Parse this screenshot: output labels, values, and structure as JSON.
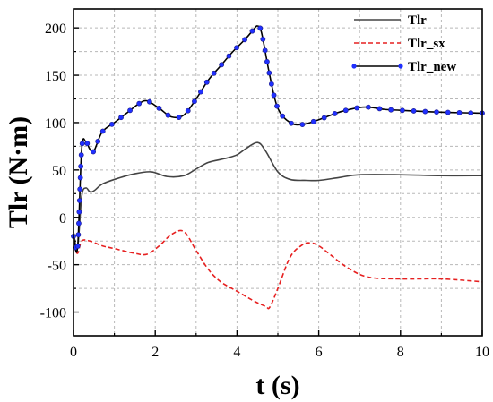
{
  "chart_data": {
    "type": "line",
    "title": "",
    "xlabel": "t (s)",
    "ylabel": "Tlr (N·m)",
    "xlim": [
      0,
      10
    ],
    "ylim": [
      -125,
      220
    ],
    "xticks": [
      0,
      2,
      4,
      6,
      8,
      10
    ],
    "yticks": [
      -100,
      -50,
      0,
      50,
      100,
      150,
      200
    ],
    "grid": true,
    "legend_position": "top-right",
    "series": [
      {
        "name": "Tlr",
        "color": "#444444",
        "style": "solid",
        "x": [
          0,
          0.1,
          0.2,
          0.3,
          0.4,
          0.5,
          0.7,
          1.0,
          1.5,
          1.9,
          2.3,
          2.7,
          3.0,
          3.3,
          3.7,
          4.0,
          4.2,
          4.5,
          4.7,
          5.0,
          5.3,
          5.7,
          6.0,
          6.5,
          7.0,
          8.0,
          9.0,
          10.0
        ],
        "y": [
          -15,
          -32,
          22,
          31,
          27,
          28,
          35,
          40,
          46,
          48,
          43,
          44,
          51,
          58,
          62,
          66,
          72,
          79,
          70,
          48,
          40,
          39,
          39,
          42,
          45,
          45,
          44,
          44
        ]
      },
      {
        "name": "Tlr_sx",
        "color": "#e62020",
        "style": "dashed",
        "x": [
          0,
          0.1,
          0.2,
          0.4,
          0.7,
          1.0,
          1.5,
          1.8,
          2.1,
          2.4,
          2.7,
          3.0,
          3.3,
          3.6,
          4.0,
          4.4,
          4.7,
          4.8,
          5.0,
          5.3,
          5.6,
          5.8,
          6.0,
          6.3,
          6.7,
          7.2,
          8.0,
          9.0,
          10.0
        ],
        "y": [
          -30,
          -38,
          -25,
          -25,
          -30,
          -33,
          -38,
          -39,
          -30,
          -18,
          -15,
          -35,
          -55,
          -68,
          -78,
          -88,
          -94,
          -95,
          -75,
          -42,
          -29,
          -27,
          -30,
          -40,
          -53,
          -63,
          -65,
          -65,
          -68
        ]
      },
      {
        "name": "Tlr_new",
        "color": "#000000",
        "style": "solid",
        "marker": "circle",
        "marker_color": "#2030ff",
        "x": [
          0,
          0.1,
          0.2,
          0.3,
          0.4,
          0.5,
          0.7,
          1.0,
          1.3,
          1.6,
          1.8,
          2.1,
          2.4,
          2.7,
          3.0,
          3.3,
          3.6,
          3.9,
          4.2,
          4.4,
          4.5,
          4.6,
          4.8,
          5.0,
          5.3,
          5.6,
          6.0,
          6.5,
          7.0,
          7.3,
          7.6,
          8.0,
          9.0,
          10.0
        ],
        "y": [
          -20,
          -32,
          72,
          80,
          72,
          70,
          90,
          100,
          110,
          120,
          123,
          115,
          106,
          108,
          125,
          145,
          160,
          175,
          188,
          198,
          202,
          195,
          150,
          115,
          100,
          98,
          103,
          111,
          116,
          116,
          114,
          113,
          111,
          110
        ]
      }
    ]
  }
}
